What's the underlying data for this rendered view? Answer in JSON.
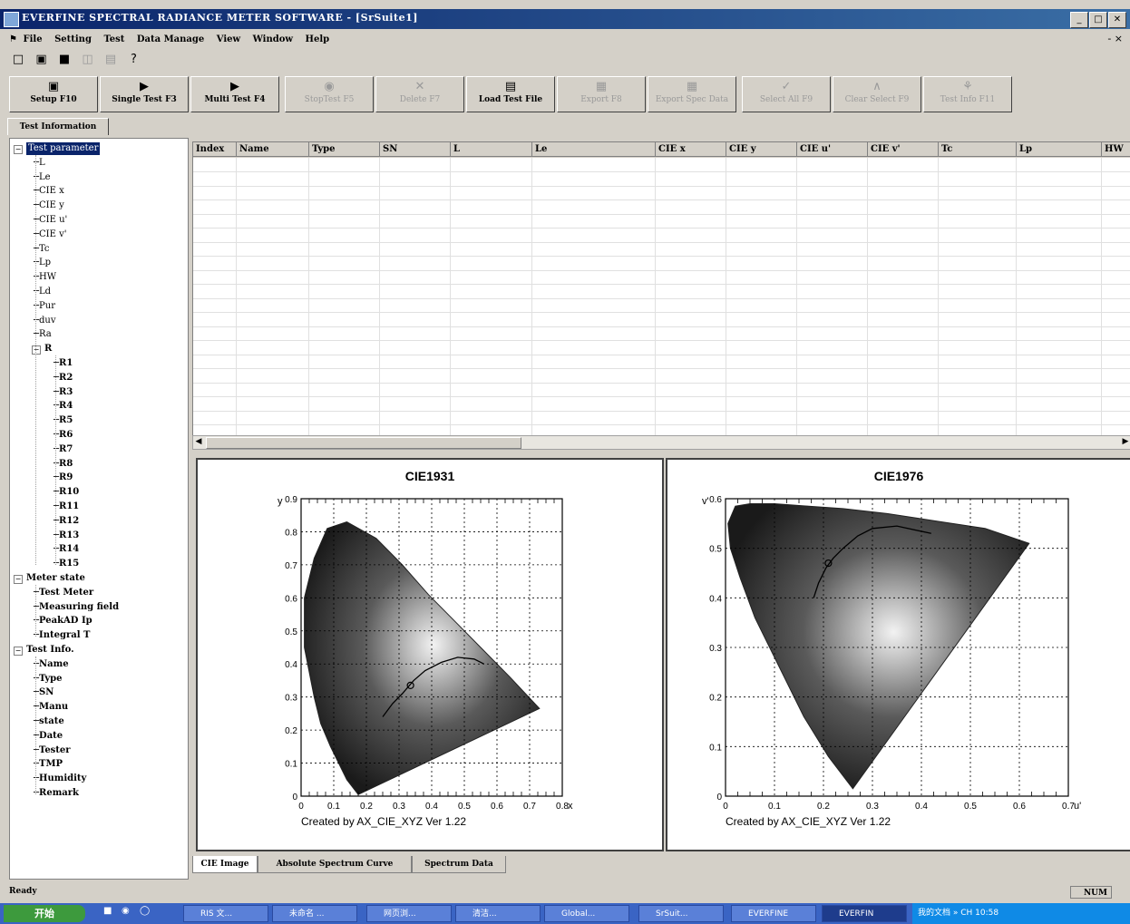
{
  "window": {
    "title": "EVERFINE SPECTRAL RADIANCE METER SOFTWARE - [SrSuite1]",
    "controls": [
      "_",
      "□",
      "✕"
    ]
  },
  "menu": {
    "items": [
      "File",
      "Setting",
      "Test",
      "Data Manage",
      "View",
      "Window",
      "Help"
    ],
    "mdi_controls": "- ×"
  },
  "std_toolbar": {
    "icons": [
      "new-icon",
      "open-icon",
      "save-icon",
      "print-preview-icon",
      "print-icon",
      "help-icon"
    ],
    "glyphs": [
      "□",
      "▣",
      "■",
      "◫",
      "▤",
      "?"
    ]
  },
  "toolbar": {
    "buttons": [
      {
        "label": "Setup F10",
        "glyph": "▣",
        "enabled": true
      },
      {
        "label": "Single Test F3",
        "glyph": "▶",
        "enabled": true
      },
      {
        "label": "Multi Test F4",
        "glyph": "▶",
        "enabled": true
      },
      {
        "label": "StopTest F5",
        "glyph": "◉",
        "enabled": false
      },
      {
        "label": "Delete F7",
        "glyph": "✕",
        "enabled": false
      },
      {
        "label": "Load Test File",
        "glyph": "▤",
        "enabled": true
      },
      {
        "label": "Export F8",
        "glyph": "▦",
        "enabled": false
      },
      {
        "label": "Export Spec Data",
        "glyph": "▦",
        "enabled": false
      },
      {
        "label": "Select All F9",
        "glyph": "✓",
        "enabled": false
      },
      {
        "label": "Clear Select F9",
        "glyph": "∧",
        "enabled": false
      },
      {
        "label": "Test Info F11",
        "glyph": "⚘",
        "enabled": false
      }
    ]
  },
  "info_tab": "Test Information",
  "tree": {
    "test_parameter": {
      "label": "Test parameter",
      "items": [
        "L",
        "Le",
        "CIE x",
        "CIE y",
        "CIE u'",
        "CIE v'",
        "Tc",
        "Lp",
        "HW",
        "Ld",
        "Pur",
        "duv",
        "Ra"
      ],
      "r_group": "R",
      "r_items": [
        "R1",
        "R2",
        "R3",
        "R4",
        "R5",
        "R6",
        "R7",
        "R8",
        "R9",
        "R10",
        "R11",
        "R12",
        "R13",
        "R14",
        "R15"
      ]
    },
    "meter_state": {
      "label": "Meter state",
      "items": [
        "Test Meter",
        "Measuring field",
        "PeakAD Ip",
        "Integral T"
      ]
    },
    "test_info": {
      "label": "Test Info.",
      "items": [
        "Name",
        "Type",
        "SN",
        "Manu",
        "state",
        "Date",
        "Tester",
        "TMP",
        "Humidity",
        "Remark"
      ]
    }
  },
  "table": {
    "columns": [
      "Index",
      "Name",
      "Type",
      "SN",
      "L",
      "Le",
      "CIE x",
      "CIE y",
      "CIE u'",
      "CIE v'",
      "Tc",
      "Lp",
      "HW"
    ],
    "rows": []
  },
  "chart_data": [
    {
      "type": "scatter",
      "title": "CIE1931",
      "xlabel": "x",
      "ylabel": "y",
      "xlim": [
        0,
        0.8
      ],
      "ylim": [
        0,
        0.9
      ],
      "xticks": [
        "0",
        "0.1",
        "0.2",
        "0.3",
        "0.4",
        "0.5",
        "0.6",
        "0.7",
        "0.8"
      ],
      "yticks": [
        "0",
        "0.1",
        "0.2",
        "0.3",
        "0.4",
        "0.5",
        "0.6",
        "0.7",
        "0.8",
        "0.9"
      ],
      "grid": true,
      "footer": "Created by AX_CIE_XYZ Ver 1.22",
      "locus": {
        "x": [
          0.175,
          0.14,
          0.09,
          0.06,
          0.04,
          0.01,
          0.01,
          0.04,
          0.08,
          0.14,
          0.23,
          0.31,
          0.39,
          0.47,
          0.55,
          0.64,
          0.73
        ],
        "y": [
          0.005,
          0.05,
          0.15,
          0.22,
          0.3,
          0.45,
          0.6,
          0.72,
          0.81,
          0.83,
          0.78,
          0.7,
          0.61,
          0.53,
          0.45,
          0.36,
          0.265
        ]
      },
      "planckian": {
        "x": [
          0.25,
          0.28,
          0.31,
          0.345,
          0.38,
          0.43,
          0.48,
          0.53,
          0.56
        ],
        "y": [
          0.24,
          0.28,
          0.31,
          0.35,
          0.38,
          0.405,
          0.42,
          0.415,
          0.4
        ]
      },
      "marker": {
        "x": 0.335,
        "y": 0.335
      }
    },
    {
      "type": "scatter",
      "title": "CIE1976",
      "xlabel": "u'",
      "ylabel": "v'",
      "xlim": [
        0,
        0.7
      ],
      "ylim": [
        0,
        0.6
      ],
      "xticks": [
        "0",
        "0.1",
        "0.2",
        "0.3",
        "0.4",
        "0.5",
        "0.6",
        "0.7"
      ],
      "yticks": [
        "0",
        "0.1",
        "0.2",
        "0.3",
        "0.4",
        "0.5",
        "0.6"
      ],
      "grid": true,
      "footer": "Created by AX_CIE_XYZ Ver 1.22",
      "locus": {
        "x": [
          0.26,
          0.21,
          0.16,
          0.11,
          0.06,
          0.03,
          0.01,
          0.005,
          0.02,
          0.05,
          0.1,
          0.17,
          0.24,
          0.33,
          0.43,
          0.53,
          0.62
        ],
        "y": [
          0.015,
          0.08,
          0.16,
          0.26,
          0.36,
          0.44,
          0.5,
          0.55,
          0.585,
          0.59,
          0.59,
          0.585,
          0.58,
          0.57,
          0.555,
          0.54,
          0.51
        ]
      },
      "planckian": {
        "x": [
          0.18,
          0.19,
          0.205,
          0.22,
          0.24,
          0.27,
          0.3,
          0.35,
          0.42
        ],
        "y": [
          0.4,
          0.43,
          0.46,
          0.48,
          0.5,
          0.525,
          0.54,
          0.545,
          0.53
        ]
      },
      "marker": {
        "x": 0.21,
        "y": 0.47
      }
    }
  ],
  "bottom_tabs": [
    "CIE Image",
    "Absolute Spectrum Curve",
    "Spectrum Data"
  ],
  "status": {
    "text": "Ready",
    "num": "NUM"
  },
  "taskbar": {
    "start": "开始",
    "tasks": [
      "RIS 文...",
      "未命名 ...",
      "网页浏...",
      "清洁...",
      "Global...",
      "SrSuit...",
      "EVERFINE",
      "EVERFIN"
    ],
    "tray": "我的文档 » CH  10:58"
  },
  "colors": {
    "titlebar": "#0a246a",
    "face": "#d4d0c8",
    "selection": "#0a246a",
    "taskbar": "#3a64c4"
  }
}
